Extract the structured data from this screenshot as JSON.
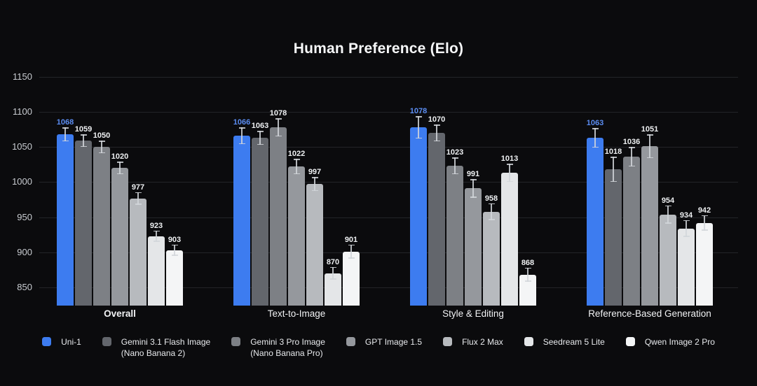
{
  "title": "Human Preference (Elo)",
  "chart_data": {
    "type": "bar",
    "title": "Human Preference (Elo)",
    "categories": [
      "Overall",
      "Text-to-Image",
      "Style & Editing",
      "Reference-Based Generation"
    ],
    "category_bold": [
      true,
      false,
      false,
      false
    ],
    "series": [
      {
        "name": "Uni-1",
        "sublabel": "",
        "color": "#3d7cf0",
        "label_color": "#5b8df2",
        "values": [
          1068,
          1066,
          1078,
          1063
        ],
        "errors": [
          10,
          12,
          16,
          14
        ]
      },
      {
        "name": "Gemini 3.1 Flash Image",
        "sublabel": "(Nano Banana 2)",
        "color": "#63666c",
        "label_color": "#eef0f2",
        "values": [
          1059,
          1063,
          1070,
          1018
        ],
        "errors": [
          9,
          10,
          12,
          18
        ]
      },
      {
        "name": "Gemini 3 Pro Image",
        "sublabel": "(Nano Banana Pro)",
        "color": "#7d8085",
        "label_color": "#eef0f2",
        "values": [
          1050,
          1078,
          1023,
          1036
        ],
        "errors": [
          9,
          13,
          12,
          14
        ]
      },
      {
        "name": "GPT Image 1.5",
        "sublabel": "",
        "color": "#95989d",
        "label_color": "#eef0f2",
        "values": [
          1020,
          1022,
          991,
          1051
        ],
        "errors": [
          9,
          11,
          13,
          17
        ]
      },
      {
        "name": "Flux 2 Max",
        "sublabel": "",
        "color": "#b7babe",
        "label_color": "#eef0f2",
        "values": [
          977,
          997,
          958,
          954
        ],
        "errors": [
          9,
          10,
          12,
          13
        ]
      },
      {
        "name": "Seedream 5 Lite",
        "sublabel": "",
        "color": "#e4e6e8",
        "label_color": "#eef0f2",
        "values": [
          923,
          870,
          1013,
          934
        ],
        "errors": [
          8,
          9,
          13,
          12
        ]
      },
      {
        "name": "Qwen Image 2 Pro",
        "sublabel": "",
        "color": "#f4f5f6",
        "label_color": "#eef0f2",
        "values": [
          903,
          901,
          868,
          942
        ],
        "errors": [
          8,
          10,
          10,
          11
        ]
      }
    ],
    "y_ticks": [
      1150,
      1100,
      1050,
      1000,
      950,
      900,
      850
    ],
    "ylim": [
      824,
      1150
    ],
    "xlabel": "",
    "ylabel": "",
    "grid": true,
    "legend_position": "bottom"
  }
}
